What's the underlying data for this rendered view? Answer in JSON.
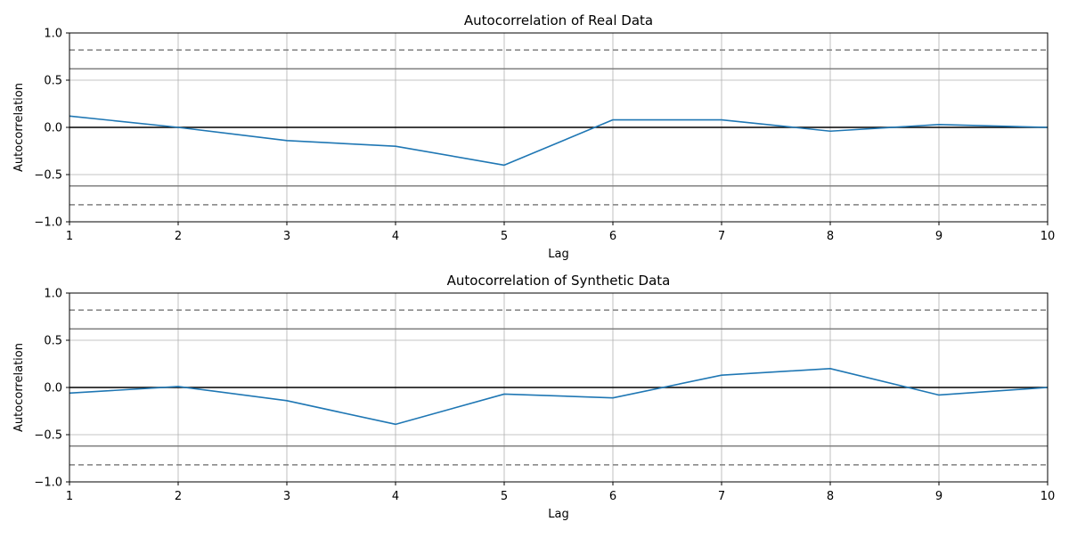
{
  "chart_data": [
    {
      "type": "line",
      "title": "Autocorrelation of Real Data",
      "xlabel": "Lag",
      "ylabel": "Autocorrelation",
      "xlim": [
        1,
        10
      ],
      "ylim": [
        -1.0,
        1.0
      ],
      "grid": true,
      "xticks": [
        "1",
        "2",
        "3",
        "4",
        "5",
        "6",
        "7",
        "8",
        "9",
        "10"
      ],
      "yticks": [
        "−1.0",
        "−0.5",
        "0.0",
        "0.5",
        "1.0"
      ],
      "x": [
        1,
        2,
        3,
        4,
        5,
        6,
        7,
        8,
        9,
        10
      ],
      "series": [
        {
          "values": [
            0.12,
            0.0,
            -0.14,
            -0.2,
            -0.4,
            0.08,
            0.08,
            -0.04,
            0.03,
            0.0
          ],
          "color": "#1f77b4"
        }
      ],
      "confidence_bands": {
        "solid": 0.62,
        "dashed": 0.82,
        "color": "#808080"
      },
      "zero_line_color": "#000000"
    },
    {
      "type": "line",
      "title": "Autocorrelation of Synthetic Data",
      "xlabel": "Lag",
      "ylabel": "Autocorrelation",
      "xlim": [
        1,
        10
      ],
      "ylim": [
        -1.0,
        1.0
      ],
      "grid": true,
      "xticks": [
        "1",
        "2",
        "3",
        "4",
        "5",
        "6",
        "7",
        "8",
        "9",
        "10"
      ],
      "yticks": [
        "−1.0",
        "−0.5",
        "0.0",
        "0.5",
        "1.0"
      ],
      "x": [
        1,
        2,
        3,
        4,
        5,
        6,
        7,
        8,
        9,
        10
      ],
      "series": [
        {
          "values": [
            -0.06,
            0.01,
            -0.14,
            -0.39,
            -0.07,
            -0.11,
            0.13,
            0.2,
            -0.08,
            0.0
          ],
          "color": "#1f77b4"
        }
      ],
      "confidence_bands": {
        "solid": 0.62,
        "dashed": 0.82,
        "color": "#808080"
      },
      "zero_line_color": "#000000"
    }
  ]
}
